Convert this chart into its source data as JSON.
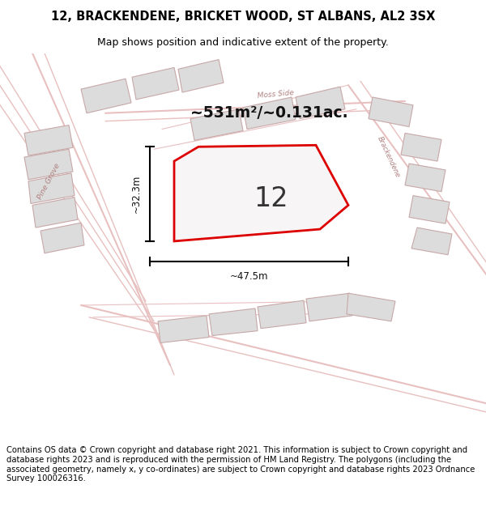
{
  "title_line1": "12, BRACKENDENE, BRICKET WOOD, ST ALBANS, AL2 3SX",
  "title_line2": "Map shows position and indicative extent of the property.",
  "area_text": "~531m²/~0.131ac.",
  "plot_number": "12",
  "dim_width": "~47.5m",
  "dim_height": "~32.3m",
  "footer_text": "Contains OS data © Crown copyright and database right 2021. This information is subject to Crown copyright and database rights 2023 and is reproduced with the permission of HM Land Registry. The polygons (including the associated geometry, namely x, y co-ordinates) are subject to Crown copyright and database rights 2023 Ordnance Survey 100026316.",
  "map_bg": "#f7f5f5",
  "road_color": "#e8c0c0",
  "plot_fill": "#f7f5f5",
  "plot_edge": "#dd0000",
  "building_fill": "#dcdcdc",
  "building_edge": "#c8a8a8",
  "street_label_color": "#b08080",
  "title_fontsize": 10.5,
  "subtitle_fontsize": 9,
  "footer_fontsize": 7.2
}
